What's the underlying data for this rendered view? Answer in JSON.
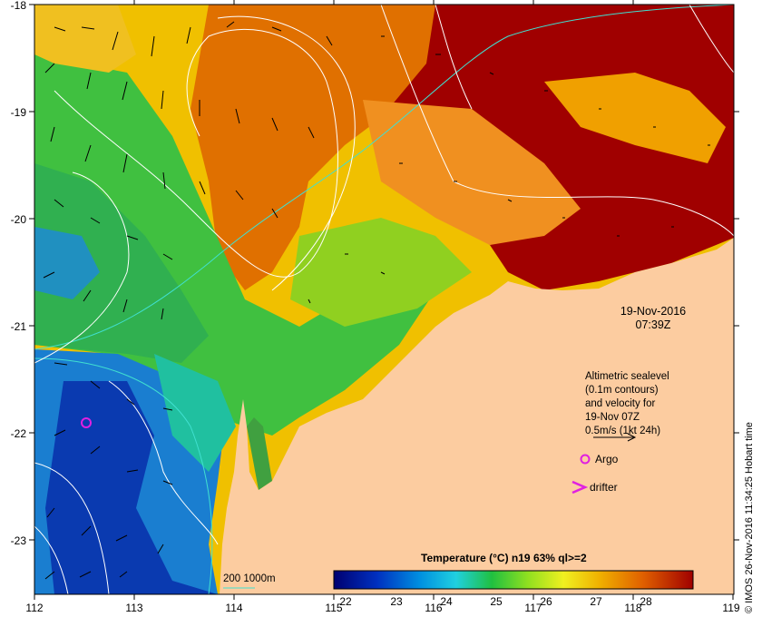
{
  "map": {
    "x_ticks": [
      "112",
      "113",
      "114",
      "115",
      "116",
      "117",
      "118",
      "119"
    ],
    "y_ticks": [
      "-18",
      "-19",
      "-20",
      "-21",
      "-22",
      "-23"
    ]
  },
  "date": {
    "day": "19-Nov-2016",
    "time": "07:39Z"
  },
  "legend": {
    "line1": "Altimetric sealevel",
    "line2": "(0.1m contours)",
    "line3": "and velocity for",
    "line4": "19-Nov 07Z",
    "line5": "0.5m/s (1kt 24h)",
    "argo_label": "Argo",
    "drifter_label": "drifter"
  },
  "colorbar": {
    "title": "Temperature (°C) n19 63% ql>=2",
    "ticks": [
      "22",
      "23",
      "24",
      "25",
      "26",
      "27",
      "28"
    ]
  },
  "isobath_label": "200  1000m",
  "credit": "© IMOS 26-Nov-2016 11:34:25 Hobart time",
  "colors": {
    "land": "#fccca0",
    "isobath": "#40e0d0",
    "argo": "#e020e0"
  }
}
